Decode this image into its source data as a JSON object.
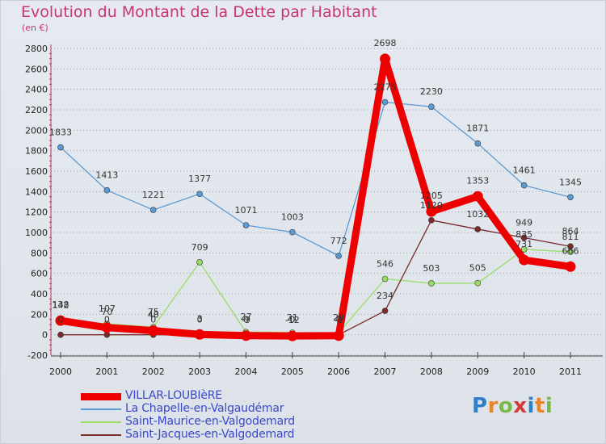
{
  "title": "Evolution du Montant de la Dette par Habitant",
  "subtitle": "(en €)",
  "logo": {
    "text": "Proxiti",
    "letter_colors": [
      "#2f7fc8",
      "#e8872a",
      "#7ab848",
      "#d23a3a",
      "#2f7fc8",
      "#e8872a",
      "#7ab848"
    ]
  },
  "chart_data": {
    "type": "line",
    "title": "Evolution du Montant de la Dette par Habitant",
    "ylabel": "(en €)",
    "x": [
      "2000",
      "2001",
      "2002",
      "2003",
      "2004",
      "2005",
      "2006",
      "2007",
      "2008",
      "2009",
      "2010",
      "2011"
    ],
    "ylim": [
      -200,
      2800
    ],
    "yticks": [
      -200,
      0,
      200,
      400,
      600,
      800,
      1000,
      1200,
      1400,
      1600,
      1800,
      2000,
      2200,
      2400,
      2600,
      2800
    ],
    "grid": "horizontal dotted",
    "legend": "bottom-left",
    "series": [
      {
        "name": "VILLAR-LOUBIèRE",
        "color": "#ee0000",
        "thick": true,
        "values": [
          138,
          70,
          40,
          3,
          -9,
          -12,
          -9,
          2698,
          1205,
          1353,
          731,
          666
        ]
      },
      {
        "name": "La Chapelle-en-Valgaudémar",
        "color": "#5b9bd5",
        "values": [
          1833,
          1413,
          1221,
          1377,
          1071,
          1003,
          772,
          2275,
          2230,
          1871,
          1461,
          1345
        ]
      },
      {
        "name": "Saint-Maurice-en-Valgodemard",
        "color": "#99dd66",
        "values": [
          142,
          107,
          75,
          709,
          27,
          21,
          20,
          546,
          503,
          505,
          835,
          811
        ]
      },
      {
        "name": "Saint-Jacques-en-Valgodemard",
        "color": "#7a2a2a",
        "values": [
          0,
          0,
          0,
          0,
          0,
          0,
          0,
          234,
          1120,
          1032,
          949,
          864
        ]
      }
    ]
  }
}
